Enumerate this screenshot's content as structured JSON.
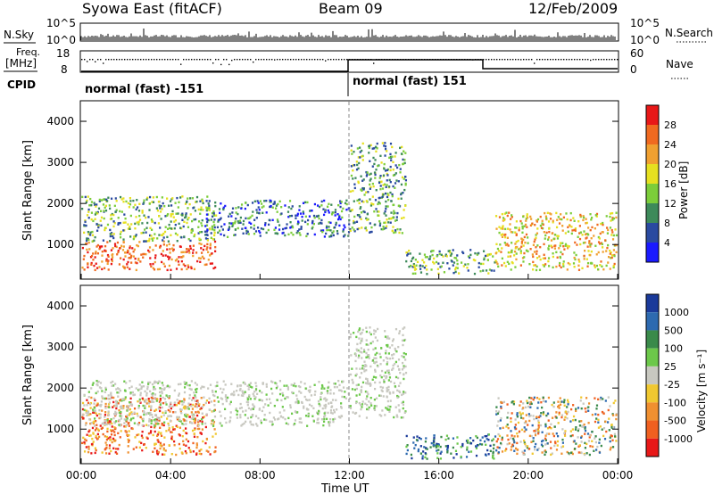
{
  "header": {
    "station": "Syowa East (fitACF)",
    "beam": "Beam 09",
    "date": "12/Feb/2009"
  },
  "top_strips": {
    "nsky_label": "N.Sky",
    "nsearch_label": "N.Search",
    "nsky_ticks": [
      "10^5",
      "10^0"
    ],
    "nsky_right_ticks": [
      "10^5",
      "10^0"
    ],
    "freq_label_1": "Freq.",
    "freq_label_2": "[MHz]",
    "freq_ticks": [
      "18",
      "8"
    ],
    "nave_ticks": [
      "60",
      "0"
    ],
    "nave_label": "Nave",
    "cpid_label": "CPID",
    "cpid_mode_1": "normal (fast) -151",
    "cpid_mode_2": "normal (fast) 151"
  },
  "axes": {
    "ylabel": "Slant Range [km]",
    "yticks": [
      "1000",
      "2000",
      "3000",
      "4000"
    ],
    "xticks": [
      "00:00",
      "04:00",
      "08:00",
      "12:00",
      "16:00",
      "20:00",
      "00:00"
    ],
    "xlabel": "Time UT"
  },
  "colorbars": {
    "power": {
      "label": "Power [dB]",
      "ticks": [
        "4",
        "8",
        "12",
        "16",
        "20",
        "24",
        "28"
      ],
      "colors": [
        "#1a1aff",
        "#2a4aa0",
        "#3d8a5a",
        "#7ccd3a",
        "#e6e020",
        "#f0a030",
        "#f06a20",
        "#e81818"
      ]
    },
    "velocity": {
      "label": "Velocity [m s⁻¹]",
      "ticks": [
        "1000",
        "500",
        "100",
        "25",
        "-25",
        "-100",
        "-500",
        "-1000"
      ],
      "colors": [
        "#1a3a9a",
        "#2d6ab0",
        "#3a8a4a",
        "#6cc84a",
        "#c8c8c0",
        "#f0c830",
        "#f09030",
        "#f06020",
        "#e81818"
      ]
    }
  },
  "chart_data": [
    {
      "type": "heatmap",
      "title": "Power",
      "x_range_hours": [
        0,
        24
      ],
      "y_range_km": [
        180,
        4500
      ],
      "regions": [
        {
          "t": [
            0.0,
            6.0
          ],
          "r": [
            400,
            1100
          ],
          "level": "high"
        },
        {
          "t": [
            0.0,
            6.0
          ],
          "r": [
            1100,
            2200
          ],
          "level": "medium"
        },
        {
          "t": [
            5.5,
            12.0
          ],
          "r": [
            1200,
            2100
          ],
          "level": "low-medium"
        },
        {
          "t": [
            12.0,
            14.5
          ],
          "r": [
            1300,
            3500
          ],
          "level": "medium"
        },
        {
          "t": [
            14.5,
            18.5
          ],
          "r": [
            300,
            900
          ],
          "level": "medium"
        },
        {
          "t": [
            18.5,
            24.0
          ],
          "r": [
            400,
            1800
          ],
          "level": "medium-high"
        }
      ]
    },
    {
      "type": "heatmap",
      "title": "Velocity",
      "x_range_hours": [
        0,
        24
      ],
      "y_range_km": [
        180,
        4500
      ],
      "regions": [
        {
          "t": [
            0.0,
            6.0
          ],
          "r": [
            400,
            1800
          ],
          "level": "negative"
        },
        {
          "t": [
            0.0,
            12.0
          ],
          "r": [
            1100,
            2200
          ],
          "level": "near-zero"
        },
        {
          "t": [
            12.0,
            14.5
          ],
          "r": [
            1300,
            3500
          ],
          "level": "near-zero"
        },
        {
          "t": [
            14.5,
            18.5
          ],
          "r": [
            300,
            900
          ],
          "level": "positive"
        },
        {
          "t": [
            18.5,
            24.0
          ],
          "r": [
            400,
            1800
          ],
          "level": "mixed"
        }
      ]
    }
  ]
}
